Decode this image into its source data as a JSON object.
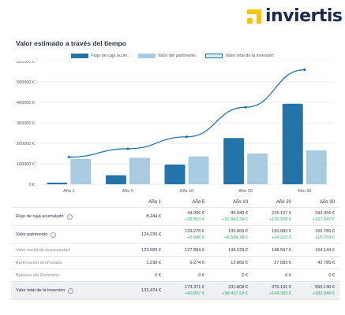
{
  "brand": {
    "name": "inviertis"
  },
  "chart_data": {
    "type": "bar",
    "title": "Valor estimado a través del tiempo",
    "categories": [
      "Año 1",
      "Año 5",
      "Año 10",
      "Año 20",
      "Año 30"
    ],
    "series": [
      {
        "name": "Flujo de caja acum.",
        "type": "bar",
        "color": "#2574a9",
        "values": [
          8244,
          44096,
          95940,
          226107,
          393355
        ]
      },
      {
        "name": "Valor del patrimonio",
        "type": "bar",
        "color": "#a9cbe0",
        "values": [
          124230,
          129276,
          135869,
          150083,
          165785
        ]
      },
      {
        "name": "Valor total de la inversión",
        "type": "line",
        "color": "#2574a9",
        "values": [
          132474,
          173371,
          231808,
          376191,
          559140
        ]
      }
    ],
    "yticks": [
      "0 €",
      "100000 €",
      "200000 €",
      "300000 €",
      "400000 €",
      "500000 €",
      "600000 €"
    ],
    "ylim": [
      0,
      600000
    ],
    "grid": true,
    "legend": "top"
  },
  "table": {
    "headers": [
      "Año 1",
      "Año 5",
      "Año 10",
      "Año 20",
      "Año 30"
    ],
    "rows": [
      {
        "label": "Flujo de caja acumulado",
        "info": true,
        "style": "strong",
        "shaded": false,
        "values": [
          "8.244 €",
          "44.096 €",
          "95.940 €",
          "226.107 €",
          "393.355 €"
        ],
        "deltas": [
          "",
          "+35.853 €",
          "+51.843,34 €",
          "+130.168 €",
          "+167.247 €"
        ]
      },
      {
        "label": "Valor patrimonio",
        "info": true,
        "style": "strong",
        "shaded": false,
        "values": [
          "124.230 €",
          "129.276 €",
          "135.869 €",
          "150.083 €",
          "165.785 €"
        ],
        "deltas": [
          "",
          "+5.046 €",
          "+6.594,28 €",
          "+14.215 €",
          "+15.703 €"
        ]
      },
      {
        "label": "Valor inicial de la propiedad",
        "info": false,
        "style": "muted",
        "shaded": false,
        "values": [
          "123.000 €",
          "127.994 €",
          "134.523 €",
          "148.597 €",
          "164.144 €"
        ],
        "deltas": [
          "",
          "",
          "",
          "",
          ""
        ]
      },
      {
        "label": "Apreciación acumulada",
        "info": false,
        "style": "muted",
        "shaded": false,
        "values": [
          "1.230 €",
          "6.274 €",
          "12.869 €",
          "27.083 €",
          "42.785 €"
        ],
        "deltas": [
          "",
          "",
          "",
          "",
          ""
        ]
      },
      {
        "label": "Balance del Préstamo",
        "info": false,
        "style": "muted",
        "shaded": false,
        "values": [
          "0 €",
          "0 €",
          "0 €",
          "0 €",
          "0 €"
        ],
        "deltas": [
          "",
          "",
          "",
          "",
          ""
        ]
      },
      {
        "label": "Valor total de la inversión",
        "info": true,
        "style": "strong",
        "shaded": true,
        "values": [
          "132.474 €",
          "173.371 €",
          "231.808 €",
          "376.191 €",
          "559.140 €"
        ],
        "deltas": [
          "",
          "+40.897 €",
          "+58.437,62 €",
          "+144.383 €",
          "+182.949 €"
        ]
      }
    ]
  }
}
